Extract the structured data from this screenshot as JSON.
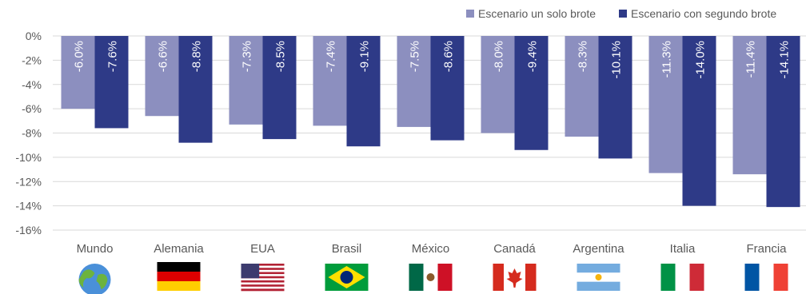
{
  "chart_data": {
    "type": "bar",
    "orientation": "vertical",
    "categories": [
      "Mundo",
      "Alemania",
      "EUA",
      "Brasil",
      "México",
      "Canadá",
      "Argentina",
      "Italia",
      "Francia"
    ],
    "series": [
      {
        "name": "Escenario un solo brote",
        "color": "#8c8fbf",
        "values": [
          -6.0,
          -6.6,
          -7.3,
          -7.4,
          -7.5,
          -8.0,
          -8.3,
          -11.3,
          -11.4
        ],
        "labels": [
          "-6.0%",
          "-6.6%",
          "-7.3%",
          "-7.4%",
          "-7.5%",
          "-8.0%",
          "-8.3%",
          "-11.3%",
          "-11.4%"
        ]
      },
      {
        "name": "Escenario con segundo brote",
        "color": "#2e3a87",
        "values": [
          -7.6,
          -8.8,
          -8.5,
          -9.1,
          -8.6,
          -9.4,
          -10.1,
          -14.0,
          -14.1
        ],
        "labels": [
          "-7.6%",
          "-8.8%",
          "-8.5%",
          "-9.1%",
          "-8.6%",
          "-9.4%",
          "-10.1%",
          "-14.0%",
          "-14.1%"
        ]
      }
    ],
    "ylim": [
      -16,
      0
    ],
    "yticks": [
      0,
      -2,
      -4,
      -6,
      -8,
      -10,
      -12,
      -14,
      -16
    ],
    "ytick_labels": [
      "0%",
      "-2%",
      "-4%",
      "-6%",
      "-8%",
      "-10%",
      "-12%",
      "-14%",
      "-16%"
    ],
    "grid": true,
    "legend_position": "top-right",
    "flags": [
      "globe-icon",
      "germany-flag-icon",
      "usa-flag-icon",
      "brazil-flag-icon",
      "mexico-flag-icon",
      "canada-flag-icon",
      "argentina-flag-icon",
      "italy-flag-icon",
      "france-flag-icon"
    ]
  }
}
